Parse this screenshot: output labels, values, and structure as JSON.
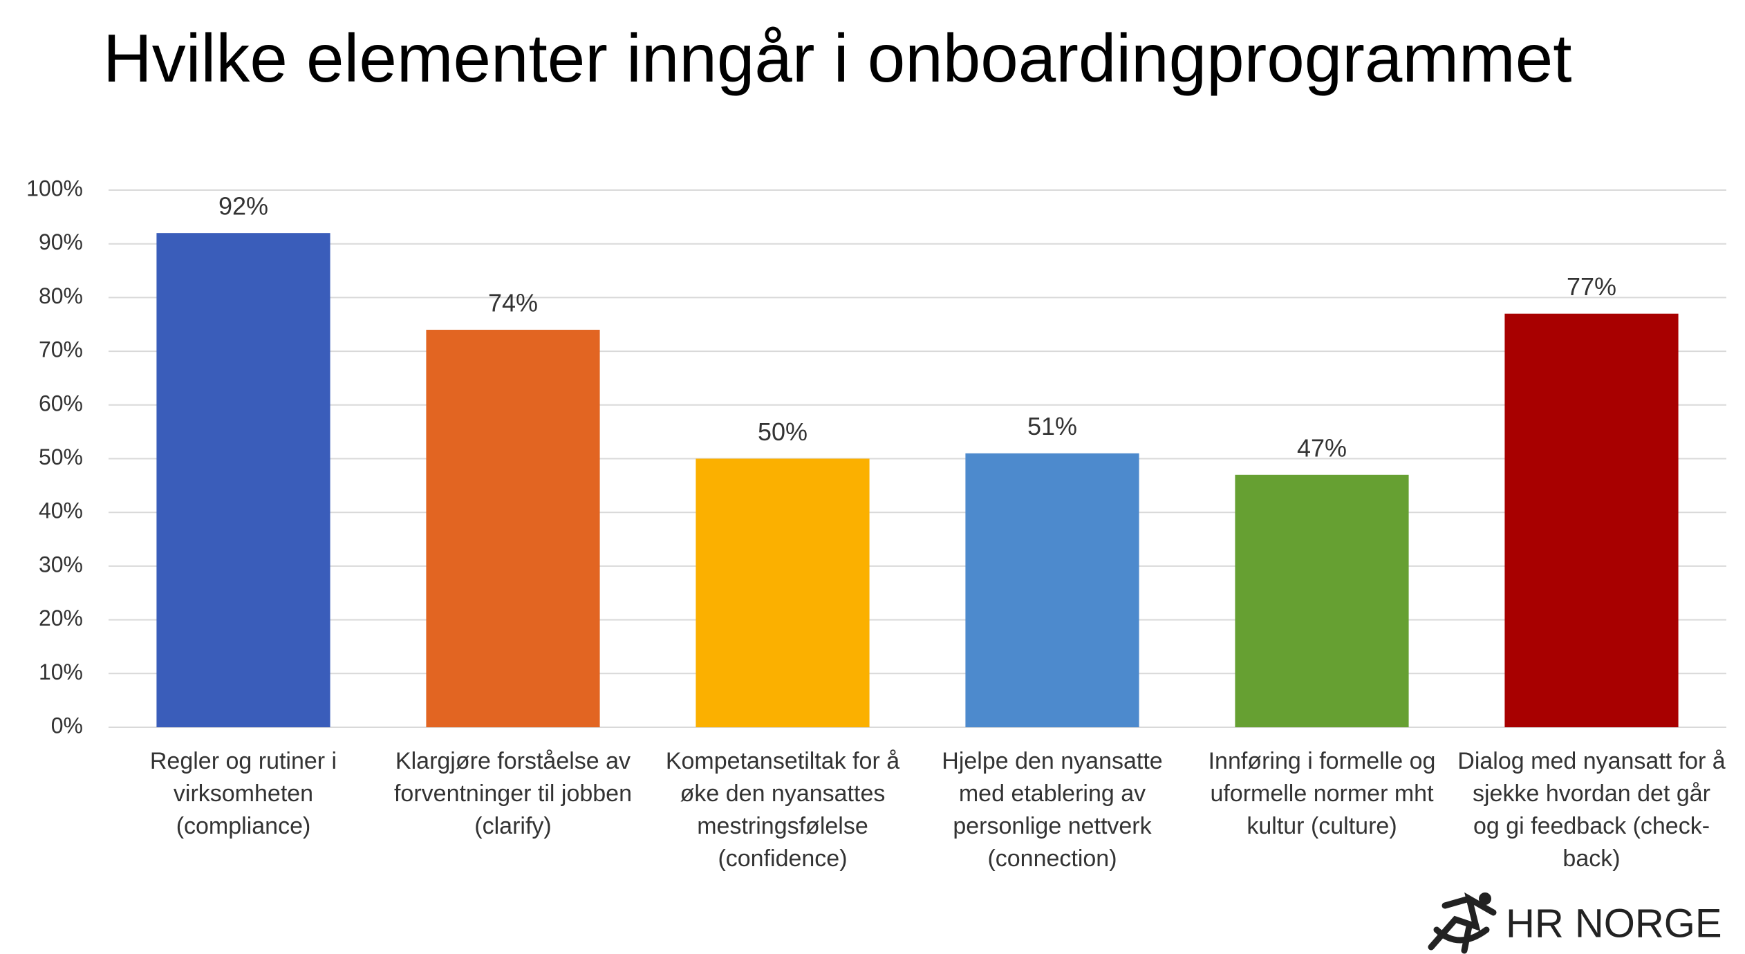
{
  "chart_data": {
    "type": "bar",
    "title": "Hvilke elementer inngår i onboardingprogrammet",
    "categories": [
      "Regler og rutiner i virksomheten (compliance)",
      "Klargjøre forståelse av forventninger til jobben (clarify)",
      "Kompetansetiltak for å øke den nyansattes mestringsfølelse (confidence)",
      "Hjelpe den nyansatte med etablering av personlige nettverk (connection)",
      "Innføring i formelle og uformelle normer mht kultur (culture)",
      "Dialog med nyansatt for å sjekke hvordan det går og gi feedback (check-back)"
    ],
    "values": [
      92,
      74,
      50,
      51,
      47,
      77
    ],
    "value_labels": [
      "92%",
      "74%",
      "50%",
      "51%",
      "47%",
      "77%"
    ],
    "colors": [
      "#3a5dba",
      "#e26522",
      "#fbb000",
      "#4d8acd",
      "#66a032",
      "#a80000"
    ],
    "ylim": [
      0,
      100
    ],
    "yticks": [
      {
        "value": 0,
        "label": "0%"
      },
      {
        "value": 10,
        "label": "10%"
      },
      {
        "value": 20,
        "label": "20%"
      },
      {
        "value": 30,
        "label": "30%"
      },
      {
        "value": 40,
        "label": "40%"
      },
      {
        "value": 50,
        "label": "50%"
      },
      {
        "value": 60,
        "label": "60%"
      },
      {
        "value": 70,
        "label": "70%"
      },
      {
        "value": 80,
        "label": "80%"
      },
      {
        "value": 90,
        "label": "90%"
      },
      {
        "value": 100,
        "label": "100%"
      }
    ],
    "grid": true
  },
  "logo": "HR NORGE"
}
